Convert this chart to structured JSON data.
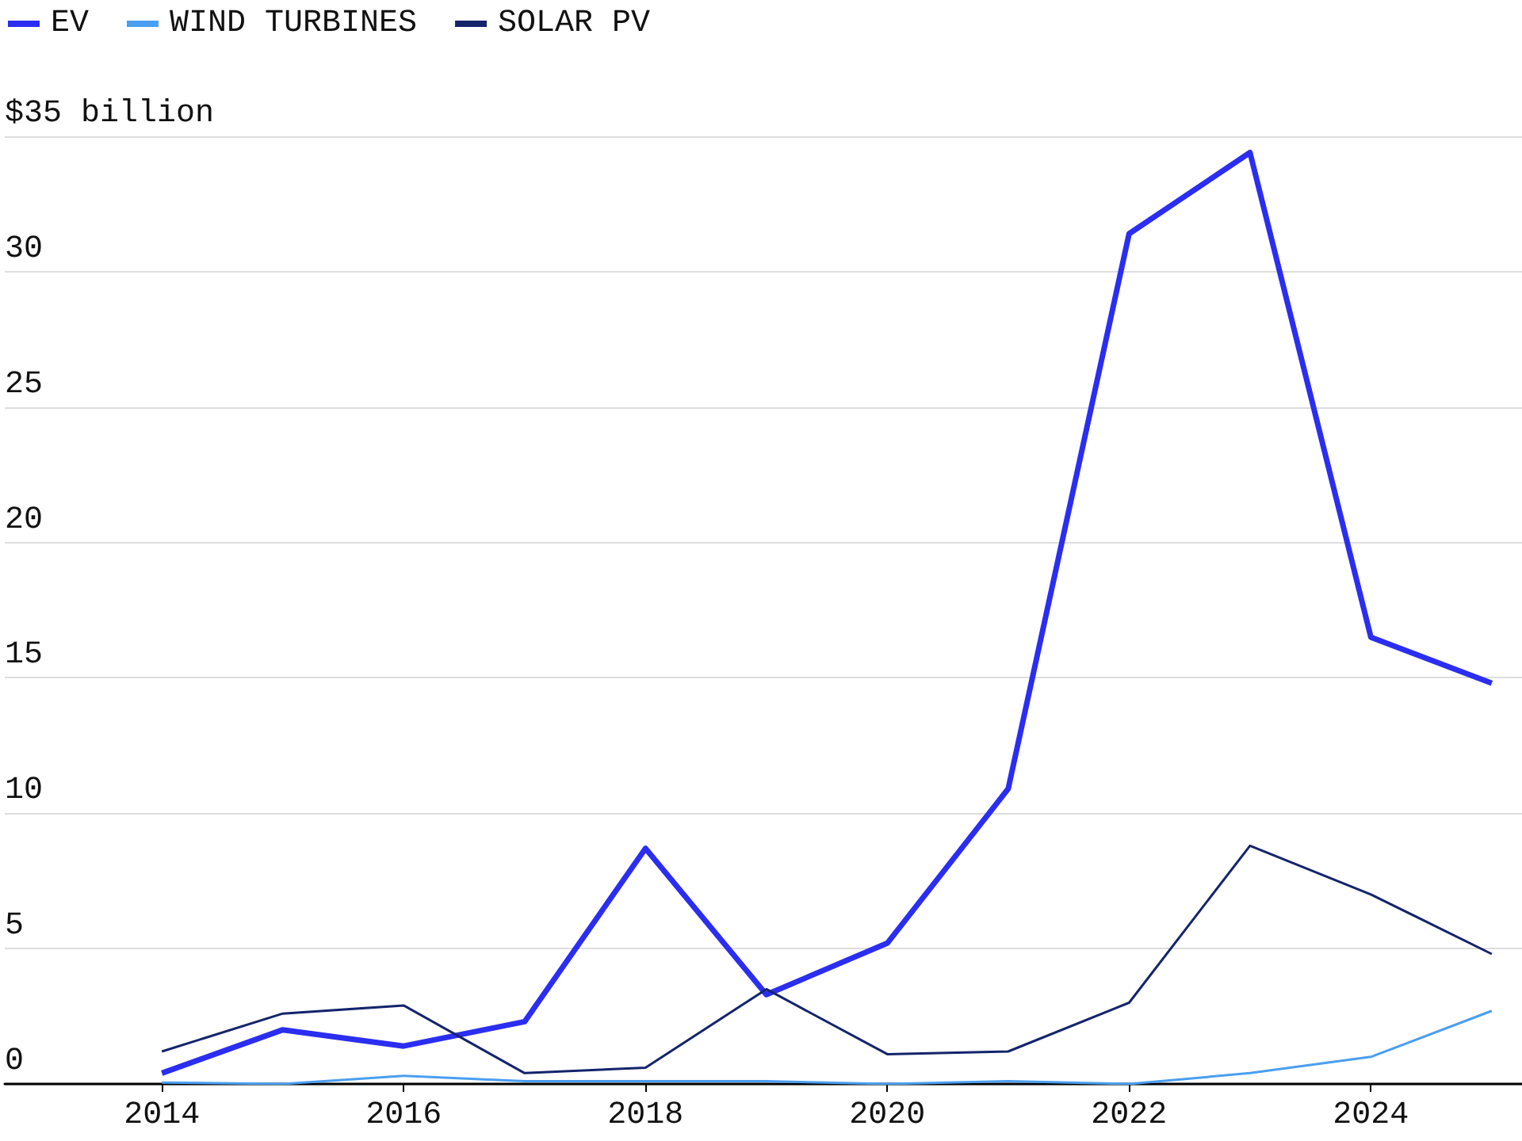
{
  "chart_data": {
    "type": "line",
    "x": [
      2014,
      2015,
      2016,
      2017,
      2018,
      2019,
      2020,
      2021,
      2022,
      2023,
      2024,
      2025
    ],
    "series": [
      {
        "name": "EV",
        "color": "#2b2ef0",
        "values": [
          0.4,
          2.0,
          1.4,
          2.3,
          8.7,
          3.3,
          5.2,
          10.9,
          31.4,
          34.4,
          16.5,
          14.8
        ]
      },
      {
        "name": "WIND TURBINES",
        "color": "#4a9ff0",
        "values": [
          0.05,
          0,
          0.3,
          0.1,
          0.1,
          0.1,
          0,
          0.1,
          0,
          0.4,
          1.0,
          2.7
        ]
      },
      {
        "name": "SOLAR PV",
        "color": "#14246b",
        "values": [
          1.2,
          2.6,
          2.9,
          0.4,
          0.6,
          3.5,
          1.1,
          1.2,
          3.0,
          8.8,
          7.0,
          4.8
        ]
      }
    ],
    "xlim": [
      2012.7,
      2025.25
    ],
    "xticks": [
      2014,
      2016,
      2018,
      2020,
      2022,
      2024
    ],
    "ylim": [
      0,
      35
    ],
    "yticks": [
      0,
      5,
      10,
      15,
      20,
      25,
      30,
      {
        "value": 35,
        "label": "$35 billion"
      }
    ],
    "grid": "y",
    "legend": "top left",
    "marker": "none",
    "line_style": "solid"
  }
}
